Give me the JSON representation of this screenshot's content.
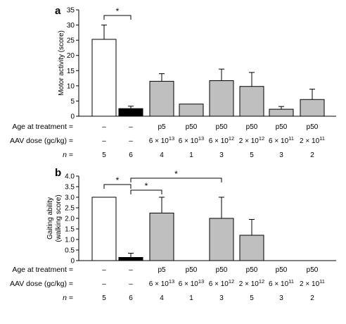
{
  "chart_data": [
    {
      "type": "bar",
      "panel_label": "a",
      "ylabel": "Motor activity (score)",
      "ylim": [
        0,
        35
      ],
      "yticks": [
        "0",
        "5",
        "10",
        "15",
        "20",
        "25",
        "30",
        "35"
      ],
      "ytick_values": [
        0,
        5,
        10,
        15,
        20,
        25,
        30,
        35
      ],
      "values": [
        25.3,
        2.5,
        11.5,
        4.0,
        11.7,
        9.8,
        2.3,
        5.5
      ],
      "errors": [
        4.7,
        0.8,
        2.5,
        null,
        3.8,
        4.6,
        0.9,
        3.4
      ],
      "colors": [
        "#ffffff",
        "#000000",
        "#bfbfbf",
        "#bfbfbf",
        "#bfbfbf",
        "#bfbfbf",
        "#bfbfbf",
        "#bfbfbf"
      ],
      "significance": [
        {
          "from": 0,
          "to": 1,
          "label": "*"
        }
      ],
      "rows": [
        {
          "label": "Age at treatment =",
          "cells": [
            "–",
            "–",
            "p5",
            "p50",
            "p50",
            "p50",
            "p50",
            "p50"
          ]
        },
        {
          "label": "AAV dose (gc/kg) =",
          "cells": [
            {
              "t": "–"
            },
            {
              "t": "–"
            },
            {
              "t": "6 × 10",
              "exp": "13"
            },
            {
              "t": "6 × 10",
              "exp": "13"
            },
            {
              "t": "6 × 10",
              "exp": "12"
            },
            {
              "t": "2 × 10",
              "exp": "12"
            },
            {
              "t": "6 × 10",
              "exp": "11"
            },
            {
              "t": "2 × 10",
              "exp": "11"
            }
          ]
        },
        {
          "label": "n =",
          "italic": true,
          "cells": [
            "5",
            "6",
            "4",
            "1",
            "3",
            "5",
            "3",
            "2"
          ]
        }
      ]
    },
    {
      "type": "bar",
      "panel_label": "b",
      "ylabel": [
        "Gaiting ability",
        "(walking score)"
      ],
      "ylim": [
        0,
        4
      ],
      "yticks": [
        "0",
        "0.5",
        "1.0",
        "1.5",
        "2.0",
        "2.5",
        "3.0",
        "3.5",
        "4.0"
      ],
      "ytick_values": [
        0,
        0.5,
        1.0,
        1.5,
        2.0,
        2.5,
        3.0,
        3.5,
        4.0
      ],
      "values": [
        3.0,
        0.15,
        2.25,
        0,
        2.0,
        1.2,
        0,
        0
      ],
      "errors": [
        null,
        0.2,
        0.75,
        null,
        1.0,
        0.75,
        null,
        null
      ],
      "colors": [
        "#ffffff",
        "#000000",
        "#bfbfbf",
        "#bfbfbf",
        "#bfbfbf",
        "#bfbfbf",
        "#bfbfbf",
        "#bfbfbf"
      ],
      "significance": [
        {
          "from": 0,
          "to": 1,
          "label": "*"
        },
        {
          "from": 1,
          "to": 2,
          "label": "*"
        },
        {
          "from": 1,
          "to": 4,
          "label": "*"
        }
      ],
      "rows": [
        {
          "label": "Age at treatment =",
          "cells": [
            "–",
            "–",
            "p5",
            "p50",
            "p50",
            "p50",
            "p50",
            "p50"
          ]
        },
        {
          "label": "AAV dose (gc/kg) =",
          "cells": [
            {
              "t": "–"
            },
            {
              "t": "–"
            },
            {
              "t": "6 × 10",
              "exp": "13"
            },
            {
              "t": "6 × 10",
              "exp": "13"
            },
            {
              "t": "6 × 10",
              "exp": "12"
            },
            {
              "t": "2 × 10",
              "exp": "12"
            },
            {
              "t": "6 × 10",
              "exp": "11"
            },
            {
              "t": "2 × 10",
              "exp": "11"
            }
          ]
        },
        {
          "label": "n =",
          "italic": true,
          "cells": [
            "5",
            "6",
            "4",
            "1",
            "3",
            "5",
            "3",
            "2"
          ]
        }
      ]
    }
  ]
}
